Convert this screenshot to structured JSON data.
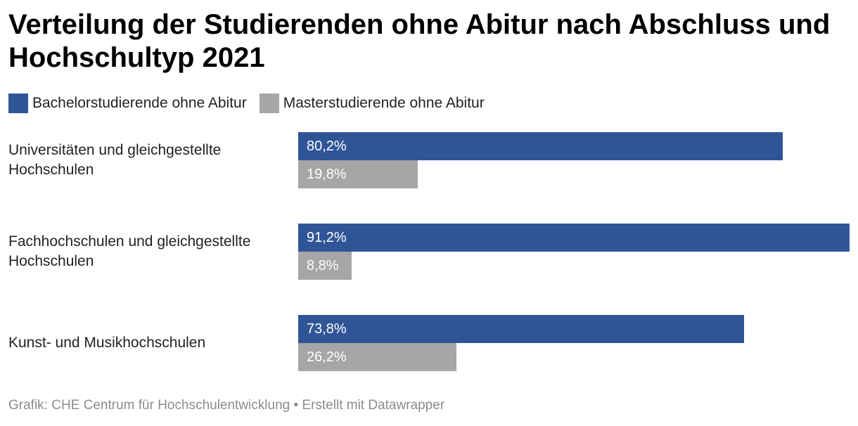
{
  "colors": {
    "bachelor": "#2f5597",
    "master": "#a6a6a6"
  },
  "chart_data": {
    "type": "bar",
    "orientation": "horizontal",
    "title": "Verteilung der Studierenden ohne Abitur nach Abschluss und Hochschultyp 2021",
    "categories": [
      "Universitäten und gleichgestellte Hochschulen",
      "Fachhochschulen und gleichgestellte Hochschulen",
      "Kunst- und Musikhochschulen"
    ],
    "series": [
      {
        "name": "Bachelorstudierende ohne Abitur",
        "values": [
          80.2,
          91.2,
          73.8
        ],
        "labels": [
          "80,2%",
          "91,2%",
          "73,8%"
        ]
      },
      {
        "name": "Masterstudierende ohne Abitur",
        "values": [
          19.8,
          8.8,
          26.2
        ],
        "labels": [
          "19,8%",
          "8,8%",
          "26,2%"
        ]
      }
    ],
    "xlim": [
      0,
      91.2
    ],
    "unit": "%",
    "legend": "top-left"
  },
  "footer": "Grafik: CHE Centrum für Hochschulentwicklung • Erstellt mit Datawrapper"
}
